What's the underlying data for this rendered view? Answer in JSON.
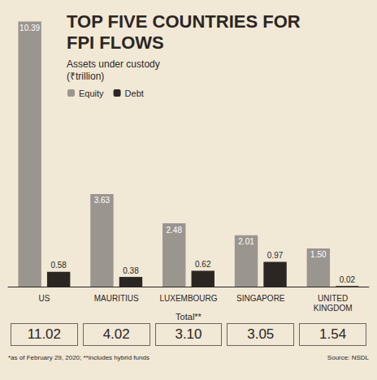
{
  "chart_data": {
    "type": "bar",
    "title": "TOP FIVE COUNTRIES FOR FPI FLOWS",
    "subtitle": "Assets under custody (₹trillion)",
    "categories": [
      "US",
      "MAURITIUS",
      "LUXEMBOURG",
      "SINGAPORE",
      "UNITED KINGDOM"
    ],
    "series": [
      {
        "name": "Equity",
        "color": "#9b9590",
        "values": [
          10.39,
          3.63,
          2.48,
          2.01,
          1.5
        ],
        "value_labels": [
          "10.39",
          "3.63",
          "2.48",
          "2.01",
          "1.50"
        ]
      },
      {
        "name": "Debt",
        "color": "#2b2622",
        "values": [
          0.58,
          0.38,
          0.62,
          0.97,
          0.02
        ]
      }
    ],
    "totals": {
      "label": "Total**",
      "values": [
        11.02,
        4.02,
        3.1,
        3.05,
        1.54
      ],
      "value_labels": [
        "11.02",
        "4.02",
        "3.10",
        "3.05",
        "1.54"
      ]
    },
    "notes": "*as of February 29, 2020; **includes hybrid funds",
    "source": "Source: NSDL",
    "ylim": [
      0,
      10.6
    ],
    "grid": false,
    "legend": "top-left",
    "data_labels": true,
    "tick_labels": false
  }
}
